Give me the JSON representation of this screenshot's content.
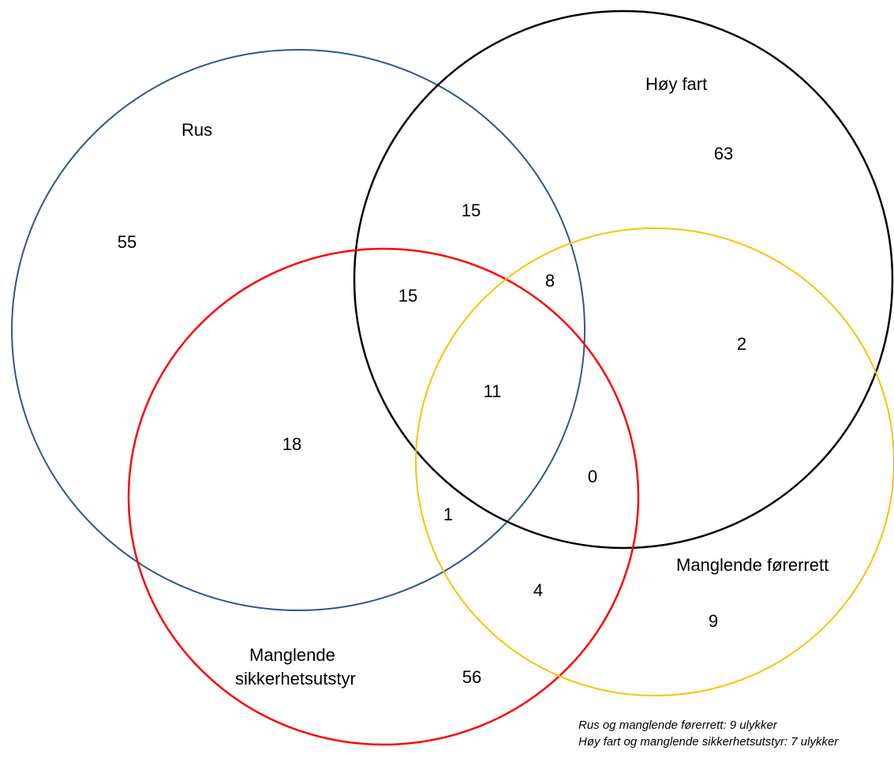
{
  "sets": [
    {
      "id": "rus",
      "label": "Rus",
      "color": "#2F5597"
    },
    {
      "id": "hoy-fart",
      "label": "Høy fart",
      "color": "#000000"
    },
    {
      "id": "manglende-sikkerhetsutstyr",
      "label_lines": [
        "Manglende",
        "sikkerhetsutstyr"
      ],
      "color": "#FF0000"
    },
    {
      "id": "manglende-forerrett",
      "label": "Manglende førerrett",
      "color": "#FFC000"
    }
  ],
  "regions": {
    "rus_only": "55",
    "hoy_fart_only": "63",
    "sikkerhetsutstyr_only": "56",
    "forerrett_only": "9",
    "rus_hoy_fart": "15",
    "rus_hoy_fart_sikkerhetsutstyr": "15",
    "rus_hoy_fart_forerrett": "8",
    "all_four": "11",
    "rus_sikkerhetsutstyr": "18",
    "hoy_fart_forerrett": "2",
    "hoy_fart_sikkerhetsutstyr_forerrett": "0",
    "rus_sikkerhetsutstyr_forerrett": "1",
    "sikkerhetsutstyr_forerrett": "4"
  },
  "notes": [
    "Rus og manglende førerrett: 9 ulykker",
    "Høy fart og manglende sikkerhetsutstyr: 7 ulykker"
  ]
}
